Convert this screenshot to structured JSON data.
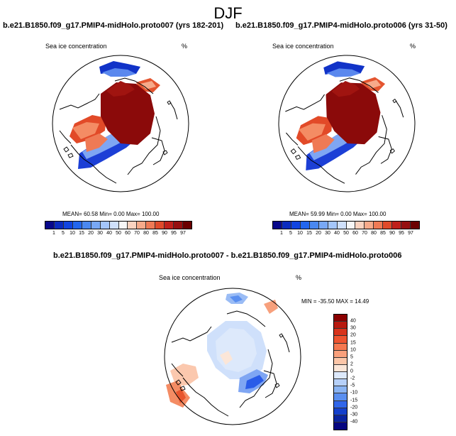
{
  "figure": {
    "title": "DJF"
  },
  "panels": [
    {
      "title": "b.e21.B1850.f09_g17.PMIP4-midHolo.proto007 (yrs 182-201)",
      "variable": "Sea ice concentration",
      "units": "%",
      "mean_label": "MEAN=",
      "mean": "60.58",
      "min_label": "Min=",
      "min": "0.00",
      "max_label": "Max=",
      "max": "100.00"
    },
    {
      "title": "b.e21.B1850.f09_g17.PMIP4-midHolo.proto006 (yrs 31-50)",
      "variable": "Sea ice concentration",
      "units": "%",
      "mean_label": "MEAN=",
      "mean": "59.99",
      "min_label": "Min=",
      "min": "0.00",
      "max_label": "Max=",
      "max": "100.00"
    },
    {
      "title": "b.e21.B1850.f09_g17.PMIP4-midHolo.proto007 - b.e21.B1850.f09_g17.PMIP4-midHolo.proto006",
      "variable": "Sea ice concentration",
      "units": "%",
      "range_label": "MIN = -35.50 MAX =  14.49"
    }
  ],
  "colorbar_main": {
    "ticks": [
      "1",
      "5",
      "10",
      "15",
      "20",
      "30",
      "40",
      "50",
      "60",
      "70",
      "80",
      "85",
      "90",
      "95",
      "97"
    ],
    "colors": [
      "#08088a",
      "#0b2bbf",
      "#1144e0",
      "#2266ee",
      "#4a88f0",
      "#78a8f5",
      "#a4c6fa",
      "#cfe0fb",
      "#f7f7f7",
      "#fbd3c0",
      "#f7aa8a",
      "#ef7a55",
      "#e04a2a",
      "#c0201a",
      "#961010",
      "#6b0000"
    ]
  },
  "colorbar_diff": {
    "ticks": [
      "40",
      "30",
      "20",
      "15",
      "10",
      "5",
      "2",
      "0",
      "-2",
      "-5",
      "-10",
      "-15",
      "-20",
      "-30",
      "-40"
    ],
    "colors": [
      "#8b0000",
      "#b81a10",
      "#d8341c",
      "#ee5430",
      "#f57850",
      "#f9a07c",
      "#fcc6a8",
      "#fbe6d8",
      "#dde9fb",
      "#b6d0f8",
      "#8ab4f3",
      "#5a8ff0",
      "#3066ea",
      "#1440cc",
      "#0a24a0",
      "#050580"
    ]
  }
}
